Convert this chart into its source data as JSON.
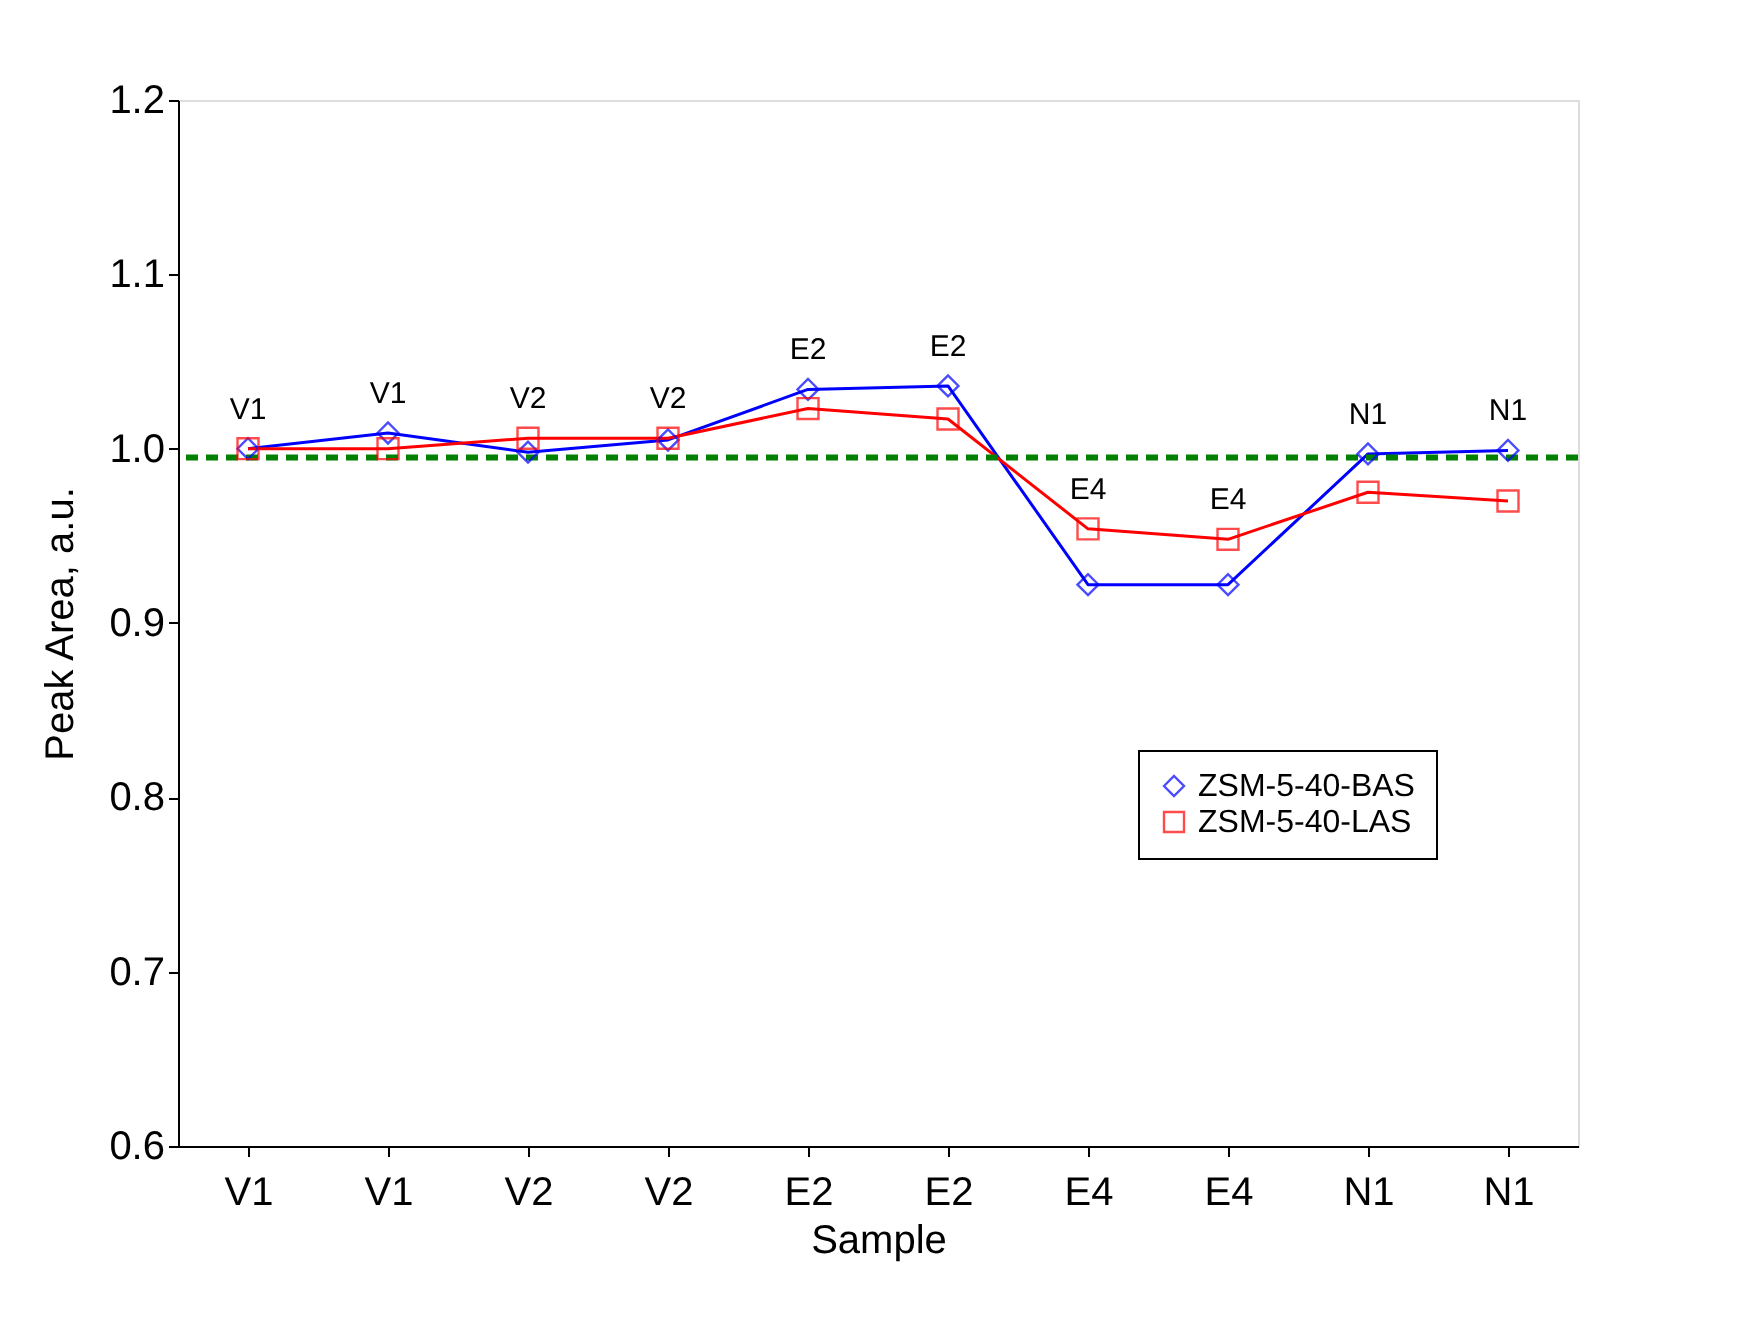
{
  "chart_data": {
    "type": "line",
    "xlabel": "Sample",
    "ylabel": "Peak Area, a.u.",
    "categories": [
      "V1",
      "V1",
      "V2",
      "V2",
      "E2",
      "E2",
      "E4",
      "E4",
      "N1",
      "N1"
    ],
    "series": [
      {
        "name": "ZSM-5-40-BAS",
        "color": "#0000ff",
        "marker": "diamond",
        "values": [
          1.0,
          1.009,
          0.998,
          1.005,
          1.034,
          1.036,
          0.922,
          0.922,
          0.997,
          0.999
        ]
      },
      {
        "name": "ZSM-5-40-LAS",
        "color": "#ff0000",
        "marker": "square",
        "values": [
          1.0,
          1.0,
          1.006,
          1.006,
          1.023,
          1.017,
          0.954,
          0.948,
          0.975,
          0.97
        ]
      }
    ],
    "ylim": [
      0.6,
      1.2
    ],
    "yticks": [
      0.6,
      0.7,
      0.8,
      0.9,
      {
        "value": 1.0,
        "label": "1.0"
      },
      1.1,
      1.2
    ],
    "ref_lines": [
      {
        "axis": "y",
        "value": 0.995,
        "label": null,
        "color": "#008000",
        "line_style": "dashed"
      }
    ],
    "annotations": [
      "V1",
      "V1",
      "V2",
      "V2",
      "E2",
      "E2",
      "E4",
      "E4",
      "N1",
      "N1"
    ],
    "grid": false,
    "legend": "bottom right",
    "line_style": "solid"
  }
}
